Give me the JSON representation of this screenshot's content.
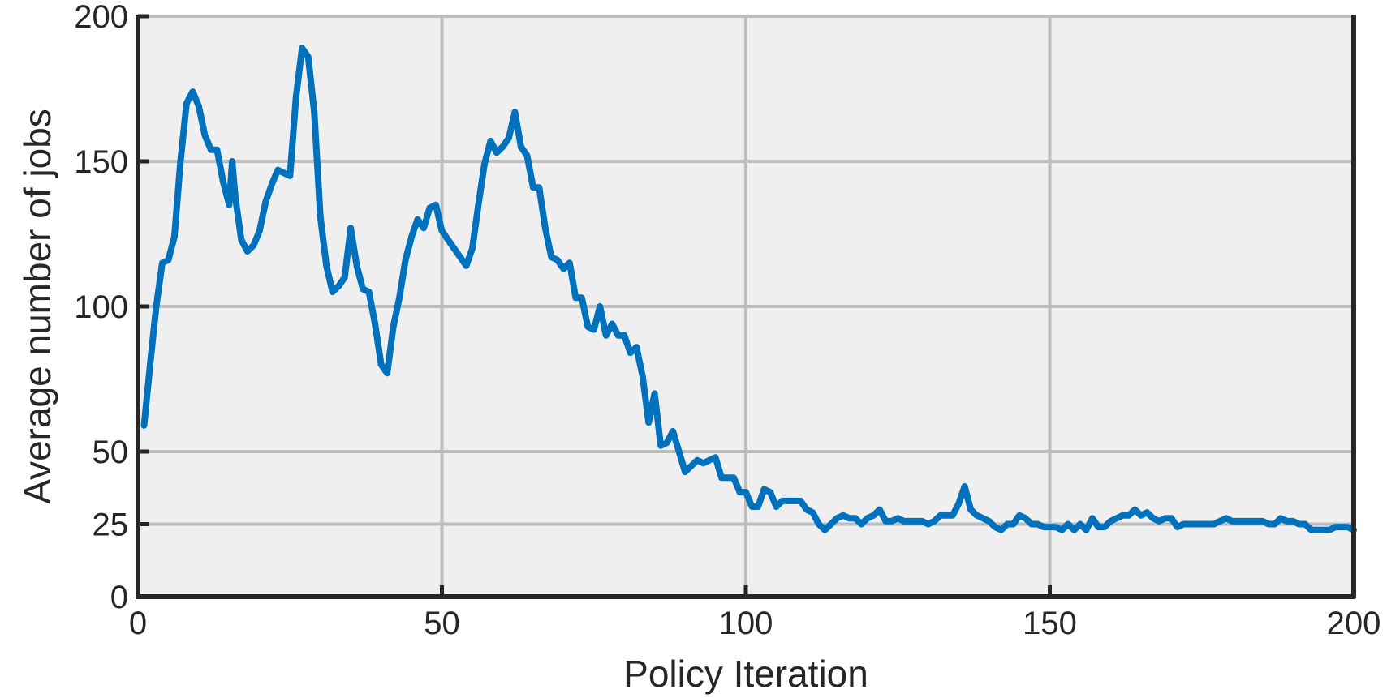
{
  "chart_data": {
    "type": "line",
    "title": "",
    "xlabel": "Policy Iteration",
    "ylabel": "Average number of jobs",
    "xlim": [
      0,
      200
    ],
    "ylim": [
      0,
      200
    ],
    "xticks": [
      0,
      50,
      100,
      150,
      200
    ],
    "yticks": [
      0,
      25,
      50,
      100,
      150,
      200
    ],
    "xtick_labels": [
      "0",
      "50",
      "100",
      "150",
      "200"
    ],
    "ytick_labels": [
      "0",
      "25",
      "50",
      "100",
      "150",
      "200"
    ],
    "grid": true,
    "legend": "none",
    "colors": {
      "line": "#0072BD",
      "plot_background": "#EFEFEF",
      "grid": "#BDBDBD",
      "axis": "#262626"
    },
    "series": [
      {
        "values": [
          [
            1,
            59
          ],
          [
            2,
            80
          ],
          [
            3,
            100
          ],
          [
            4,
            115
          ],
          [
            5,
            116
          ],
          [
            6,
            124
          ],
          [
            7,
            150
          ],
          [
            8,
            170
          ],
          [
            9,
            174
          ],
          [
            10,
            169
          ],
          [
            11,
            159
          ],
          [
            12,
            154
          ],
          [
            13,
            154
          ],
          [
            14,
            143
          ],
          [
            15,
            135
          ],
          [
            15.5,
            150
          ],
          [
            16,
            138
          ],
          [
            17,
            123
          ],
          [
            18,
            119
          ],
          [
            19,
            121
          ],
          [
            20,
            126
          ],
          [
            21,
            136
          ],
          [
            22,
            142
          ],
          [
            23,
            147
          ],
          [
            24,
            146
          ],
          [
            25,
            145
          ],
          [
            26,
            172
          ],
          [
            27,
            189
          ],
          [
            28,
            186
          ],
          [
            29,
            167
          ],
          [
            30,
            131
          ],
          [
            31,
            114
          ],
          [
            32,
            105
          ],
          [
            33,
            107
          ],
          [
            34,
            110
          ],
          [
            35,
            127
          ],
          [
            36,
            114
          ],
          [
            37,
            106
          ],
          [
            38,
            105
          ],
          [
            39,
            94
          ],
          [
            40,
            80
          ],
          [
            41,
            77
          ],
          [
            42,
            93
          ],
          [
            43,
            103
          ],
          [
            44,
            116
          ],
          [
            45,
            124
          ],
          [
            46,
            130
          ],
          [
            47,
            127
          ],
          [
            48,
            134
          ],
          [
            49,
            135
          ],
          [
            50,
            126
          ],
          [
            51,
            123
          ],
          [
            52,
            120
          ],
          [
            53,
            117
          ],
          [
            54,
            114
          ],
          [
            55,
            120
          ],
          [
            56,
            135
          ],
          [
            57,
            149
          ],
          [
            58,
            157
          ],
          [
            59,
            153
          ],
          [
            60,
            155
          ],
          [
            61,
            158
          ],
          [
            62,
            167
          ],
          [
            63,
            155
          ],
          [
            64,
            152
          ],
          [
            65,
            141
          ],
          [
            66,
            141
          ],
          [
            67,
            127
          ],
          [
            68,
            117
          ],
          [
            69,
            116
          ],
          [
            70,
            113
          ],
          [
            71,
            115
          ],
          [
            72,
            103
          ],
          [
            73,
            103
          ],
          [
            74,
            93
          ],
          [
            75,
            92
          ],
          [
            76,
            100
          ],
          [
            77,
            90
          ],
          [
            78,
            94
          ],
          [
            79,
            90
          ],
          [
            80,
            90
          ],
          [
            81,
            84
          ],
          [
            82,
            86
          ],
          [
            83,
            76
          ],
          [
            84,
            60
          ],
          [
            85,
            70
          ],
          [
            86,
            52
          ],
          [
            87,
            53
          ],
          [
            88,
            57
          ],
          [
            89,
            50
          ],
          [
            90,
            43
          ],
          [
            91,
            45
          ],
          [
            92,
            47
          ],
          [
            93,
            46
          ],
          [
            94,
            47
          ],
          [
            95,
            48
          ],
          [
            96,
            41
          ],
          [
            97,
            41
          ],
          [
            98,
            41
          ],
          [
            99,
            36
          ],
          [
            100,
            36
          ],
          [
            101,
            31
          ],
          [
            102,
            31
          ],
          [
            103,
            37
          ],
          [
            104,
            36
          ],
          [
            105,
            31
          ],
          [
            106,
            33
          ],
          [
            107,
            33
          ],
          [
            108,
            33
          ],
          [
            109,
            33
          ],
          [
            110,
            30
          ],
          [
            111,
            29
          ],
          [
            112,
            25
          ],
          [
            113,
            23
          ],
          [
            114,
            25
          ],
          [
            115,
            27
          ],
          [
            116,
            28
          ],
          [
            117,
            27
          ],
          [
            118,
            27
          ],
          [
            119,
            25
          ],
          [
            120,
            27
          ],
          [
            121,
            28
          ],
          [
            122,
            30
          ],
          [
            123,
            26
          ],
          [
            124,
            26
          ],
          [
            125,
            27
          ],
          [
            126,
            26
          ],
          [
            127,
            26
          ],
          [
            128,
            26
          ],
          [
            129,
            26
          ],
          [
            130,
            25
          ],
          [
            131,
            26
          ],
          [
            132,
            28
          ],
          [
            133,
            28
          ],
          [
            134,
            28
          ],
          [
            135,
            32
          ],
          [
            136,
            38
          ],
          [
            137,
            30
          ],
          [
            138,
            28
          ],
          [
            139,
            27
          ],
          [
            140,
            26
          ],
          [
            141,
            24
          ],
          [
            142,
            23
          ],
          [
            143,
            25
          ],
          [
            144,
            25
          ],
          [
            145,
            28
          ],
          [
            146,
            27
          ],
          [
            147,
            25
          ],
          [
            148,
            25
          ],
          [
            149,
            24
          ],
          [
            150,
            24
          ],
          [
            151,
            24
          ],
          [
            152,
            23
          ],
          [
            153,
            25
          ],
          [
            154,
            23
          ],
          [
            155,
            25
          ],
          [
            156,
            23
          ],
          [
            157,
            27
          ],
          [
            158,
            24
          ],
          [
            159,
            24
          ],
          [
            160,
            26
          ],
          [
            161,
            27
          ],
          [
            162,
            28
          ],
          [
            163,
            28
          ],
          [
            164,
            30
          ],
          [
            165,
            28
          ],
          [
            166,
            29
          ],
          [
            167,
            27
          ],
          [
            168,
            26
          ],
          [
            169,
            27
          ],
          [
            170,
            27
          ],
          [
            171,
            24
          ],
          [
            172,
            25
          ],
          [
            173,
            25
          ],
          [
            174,
            25
          ],
          [
            175,
            25
          ],
          [
            176,
            25
          ],
          [
            177,
            25
          ],
          [
            178,
            26
          ],
          [
            179,
            27
          ],
          [
            180,
            26
          ],
          [
            181,
            26
          ],
          [
            182,
            26
          ],
          [
            183,
            26
          ],
          [
            184,
            26
          ],
          [
            185,
            26
          ],
          [
            186,
            25
          ],
          [
            187,
            25
          ],
          [
            188,
            27
          ],
          [
            189,
            26
          ],
          [
            190,
            26
          ],
          [
            191,
            25
          ],
          [
            192,
            25
          ],
          [
            193,
            23
          ],
          [
            194,
            23
          ],
          [
            195,
            23
          ],
          [
            196,
            23
          ],
          [
            197,
            24
          ],
          [
            198,
            24
          ],
          [
            199,
            24
          ],
          [
            200,
            23
          ]
        ]
      }
    ]
  }
}
